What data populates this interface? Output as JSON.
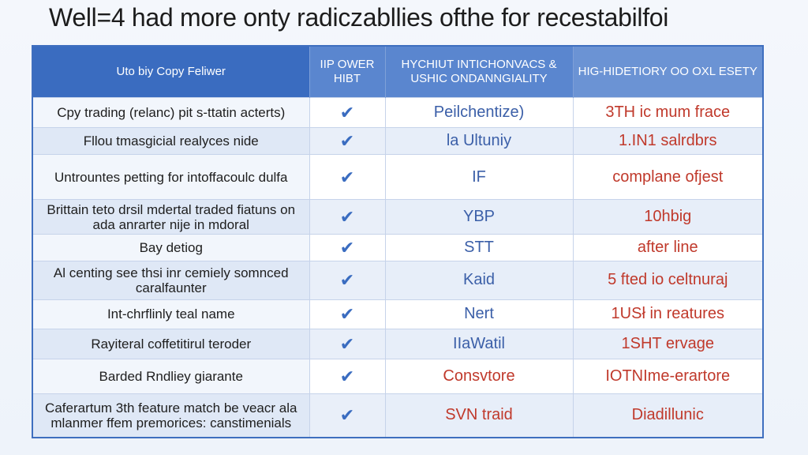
{
  "title": "Well=4 had more onty radiczabllies ofthe for recestabilfoi",
  "table": {
    "headers": [
      "Uto biy Copy Feliwer",
      "IIP OWER HIBT",
      "HYCHIUT INTICHONVACS & USHIC ONDANNGIALITY",
      "HIG-HIDETIORY OO OXL ESETY"
    ],
    "rows": [
      {
        "feature": "Cpy trading (relanc) pit s-ttatin acterts)",
        "check": "✔",
        "mid": "Peilchentize)",
        "mid_color": "blue",
        "right": "3TH ic mum frace"
      },
      {
        "feature": "Fllou tmasgicial realyces nide",
        "check": "✔",
        "mid": "la Ultuniy",
        "mid_color": "blue",
        "right": "1.IN1 salrdbrs"
      },
      {
        "feature": "Untrountes petting for intoffacoulc dulfa",
        "check": "✔",
        "mid": "IF",
        "mid_color": "blue",
        "right": "complane ofjest"
      },
      {
        "feature": "Brittain teto drsil mdertal traded fiatuns on ada anrarter nije in mdoral",
        "check": "✔",
        "mid": "YBP",
        "mid_color": "blue",
        "right": "10hbig"
      },
      {
        "feature": "Bay detiog",
        "check": "✔",
        "mid": "STT",
        "mid_color": "blue",
        "right": "after line"
      },
      {
        "feature": "Al centing see thsi inr cemiely somnced caralfaunter",
        "check": "✔",
        "mid": "Kaid",
        "mid_color": "blue",
        "right": "5 fted io celtnuraj"
      },
      {
        "feature": "Int-chrflinly teal name",
        "check": "✔",
        "mid": "Nert",
        "mid_color": "blue",
        "right": "1USł in reatures"
      },
      {
        "feature": "Rayiteral coffetitirul teroder",
        "check": "✔",
        "mid": "IIaWatil",
        "mid_color": "blue",
        "right": "1SHT ervage"
      },
      {
        "feature": "Barded Rndliey giarante",
        "check": "✔",
        "mid": "Consvtore",
        "mid_color": "red",
        "right": "IOTNIme-erartore"
      },
      {
        "feature": "Caferartum 3th feature match be veacr ala mlanmer ffem premorices: canstimenials",
        "check": "✔",
        "mid": "SVN traid",
        "mid_color": "red",
        "right": "Diadillunic"
      }
    ]
  }
}
